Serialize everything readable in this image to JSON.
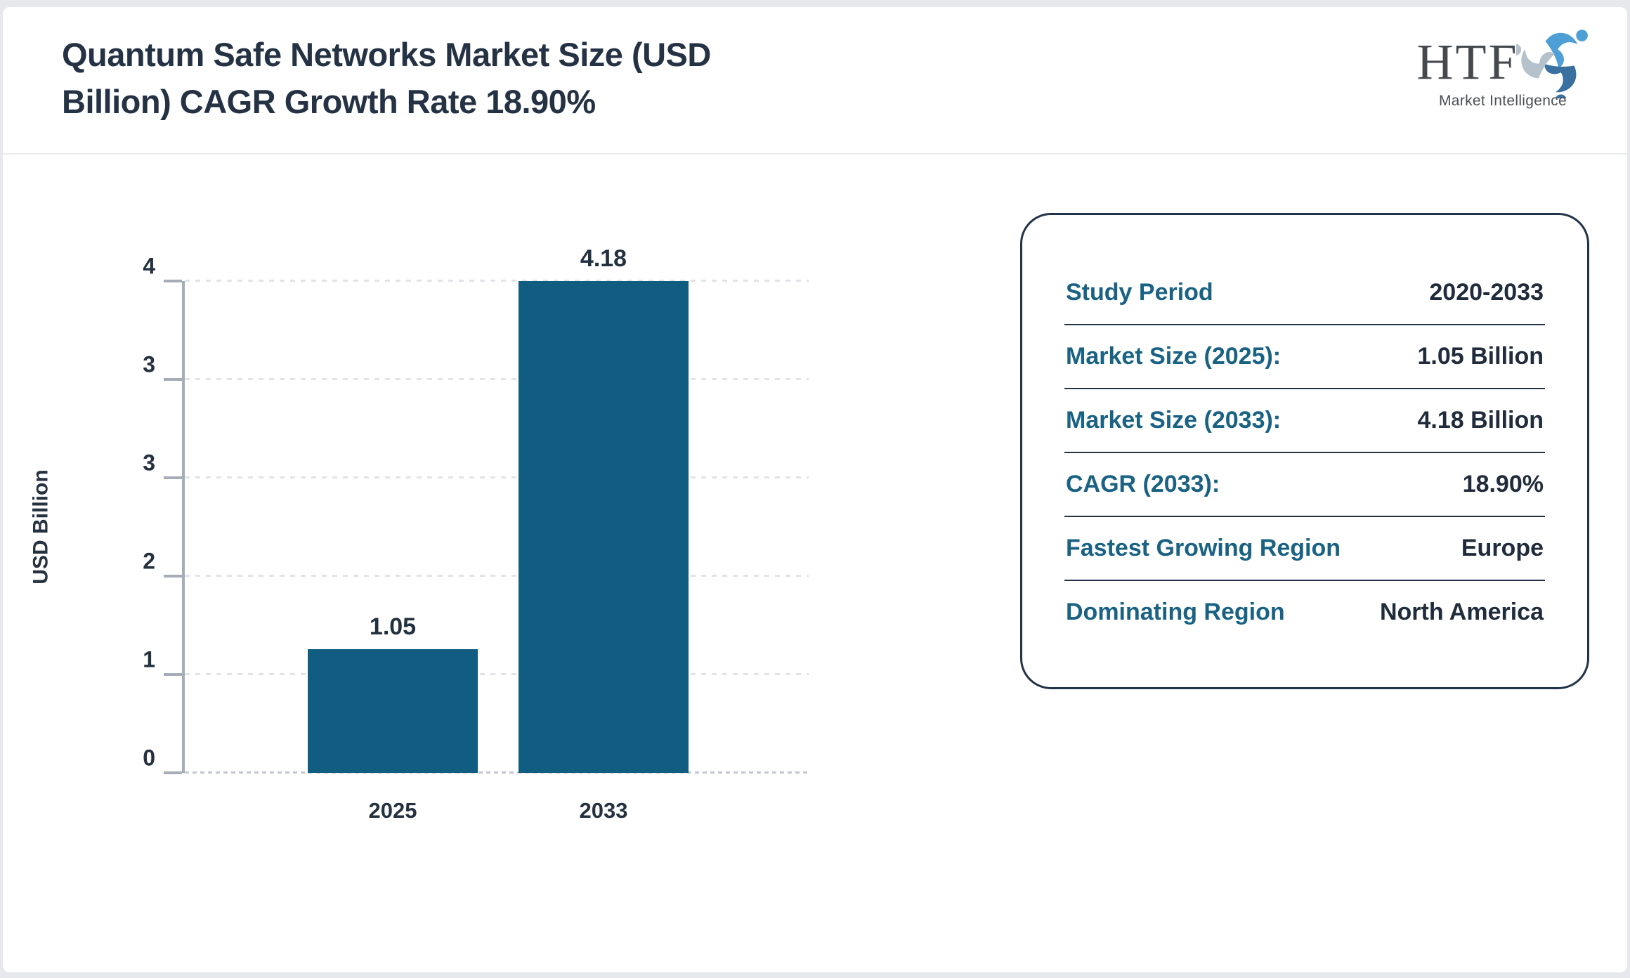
{
  "header": {
    "title_lines": [
      "Quantum Safe Networks Market Size (USD",
      "Billion) CAGR Growth Rate 18.90%"
    ]
  },
  "logo": {
    "name": "HTF",
    "tagline": "Market Intelligence"
  },
  "chart_data": {
    "type": "bar",
    "title": "Quantum Safe Networks Market Size (USD Billion) CAGR Growth Rate 18.90%",
    "categories": [
      "2025",
      "2033"
    ],
    "values": [
      1.05,
      4.18
    ],
    "value_labels": [
      "1.05",
      "4.18"
    ],
    "xlabel": "",
    "ylabel": "USD Billion",
    "ylim": [
      0,
      4.18
    ],
    "yticks": [
      {
        "value": 0,
        "label": "0"
      },
      {
        "value": 0.836,
        "label": "1"
      },
      {
        "value": 1.672,
        "label": "2"
      },
      {
        "value": 2.508,
        "label": "3"
      },
      {
        "value": 3.344,
        "label": "3"
      },
      {
        "value": 4.18,
        "label": "4"
      }
    ],
    "grid": "horizontal-dashed",
    "legend": "none",
    "bar_color": "#115d81"
  },
  "info_card": {
    "rows": [
      {
        "label": "Study Period",
        "value": "2020-2033"
      },
      {
        "label": "Market Size (2025):",
        "value": "1.05 Billion"
      },
      {
        "label": "Market Size (2033):",
        "value": "4.18 Billion"
      },
      {
        "label": "CAGR (2033):",
        "value": "18.90%"
      },
      {
        "label": "Fastest Growing Region",
        "value": "Europe"
      },
      {
        "label": "Dominating Region",
        "value": "North America"
      }
    ]
  },
  "colors": {
    "bar_teal": "#115d81",
    "label_teal": "#1a6283",
    "value_navy": "#202c3c",
    "title_navy": "#243244",
    "axis_gray": "#a7adb8",
    "gridline_gray": "#e1e3e7",
    "page_background": "#e6e8ec",
    "card_border_navy": "#223349",
    "logo_light_blue": "#4d9fd6",
    "logo_steel_blue": "#3a70a0",
    "logo_gray_blue": "#b5c2cc"
  }
}
